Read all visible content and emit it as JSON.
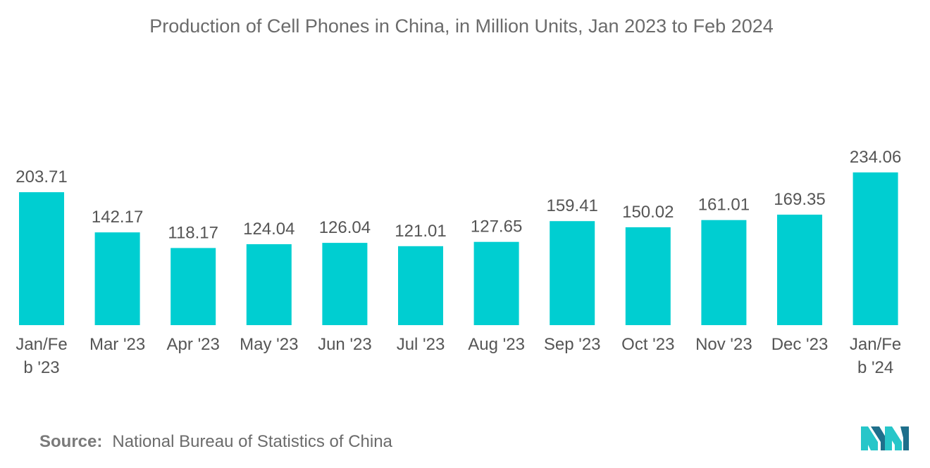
{
  "chart_data": {
    "type": "bar",
    "title": "Production of Cell Phones in China, in Million Units, Jan 2023 to Feb 2024",
    "xlabel": "",
    "ylabel": "",
    "categories": [
      [
        "Jan/Fe",
        "b '23"
      ],
      [
        "Mar '23"
      ],
      [
        "Apr '23"
      ],
      [
        "May '23"
      ],
      [
        "Jun '23"
      ],
      [
        "Jul '23"
      ],
      [
        "Aug '23"
      ],
      [
        "Sep '23"
      ],
      [
        "Oct '23"
      ],
      [
        "Nov '23"
      ],
      [
        "Dec '23"
      ],
      [
        "Jan/Fe",
        "b '24"
      ]
    ],
    "values": [
      203.71,
      142.17,
      118.17,
      124.04,
      126.04,
      121.01,
      127.65,
      159.41,
      150.02,
      161.01,
      169.35,
      234.06
    ],
    "value_labels": [
      "203.71",
      "142.17",
      "118.17",
      "124.04",
      "126.04",
      "121.01",
      "127.65",
      "159.41",
      "150.02",
      "161.01",
      "169.35",
      "234.06"
    ],
    "ylim": [
      0,
      234.06
    ],
    "grid": false,
    "legend": "none",
    "bar_color": "#00CED1"
  },
  "source": {
    "label": "Source:",
    "text": "National Bureau of Statistics of China"
  },
  "colors": {
    "bar": "#00CED1",
    "text": "#6b6b6b",
    "logo_dark": "#1f6f8b",
    "logo_light": "#27c6c9"
  }
}
